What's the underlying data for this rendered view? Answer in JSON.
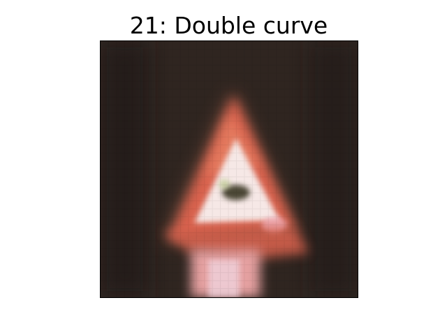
{
  "title": "21: Double curve",
  "image": {
    "subject": "red-bordered triangular warning road sign at night, low resolution pixelated",
    "colors": {
      "background": "#2f2520",
      "background_dark": "#1f1814",
      "sign_border": "#d9624e",
      "sign_border_light": "#ec8a6a",
      "sign_inner": "#f6e8e6",
      "sign_glow": "#f2b7c4",
      "symbol": "#4b4636",
      "post": "#e5a0a0",
      "post_light": "#f0d2dc"
    }
  }
}
